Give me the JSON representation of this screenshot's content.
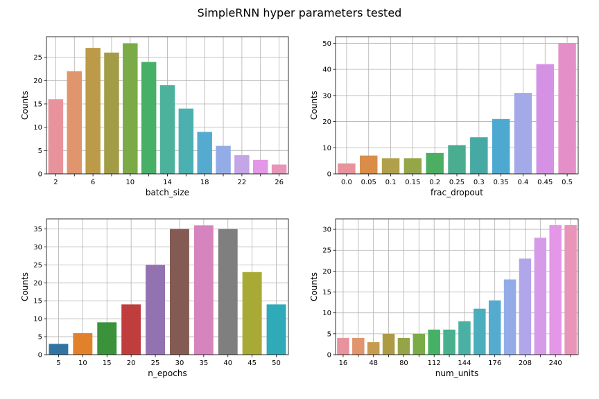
{
  "title": "SimpleRNN hyper parameters tested",
  "chart_data": [
    {
      "type": "bar",
      "xlabel": "batch_size",
      "ylabel": "Counts",
      "ylim": [
        0,
        29.4
      ],
      "yticks": [
        0,
        5,
        10,
        15,
        20,
        25
      ],
      "grid": true,
      "categories": [
        "2",
        "4",
        "6",
        "8",
        "10",
        "12",
        "14",
        "16",
        "18",
        "20",
        "22",
        "24",
        "26"
      ],
      "tick_labels": [
        "2",
        "",
        "6",
        "",
        "10",
        "",
        "14",
        "",
        "18",
        "",
        "22",
        "",
        "26"
      ],
      "values": [
        16,
        22,
        27,
        26,
        28,
        24,
        19,
        14,
        9,
        6,
        4,
        3,
        2
      ],
      "colors": [
        "#e8939b",
        "#e0956c",
        "#bb9a48",
        "#a29c46",
        "#7aab46",
        "#46b166",
        "#4cb29c",
        "#4ab0b0",
        "#55abcf",
        "#93ace8",
        "#c3a5e8",
        "#e496e7",
        "#e994b9"
      ]
    },
    {
      "type": "bar",
      "xlabel": "frac_dropout",
      "ylabel": "Counts",
      "ylim": [
        0,
        52.5
      ],
      "yticks": [
        0,
        10,
        20,
        30,
        40,
        50
      ],
      "grid": true,
      "categories": [
        "0.0",
        "0.05",
        "0.1",
        "0.15",
        "0.2",
        "0.25",
        "0.3",
        "0.35",
        "0.4",
        "0.45",
        "0.5"
      ],
      "tick_labels": [
        "0.0",
        "0.05",
        "0.1",
        "0.15",
        "0.2",
        "0.25",
        "0.3",
        "0.35",
        "0.4",
        "0.45",
        "0.5"
      ],
      "values": [
        4,
        7,
        6,
        6,
        8,
        11,
        14,
        21,
        31,
        42,
        50
      ],
      "colors": [
        "#e8939b",
        "#d98d48",
        "#b0a04a",
        "#94a647",
        "#4bae62",
        "#4aad90",
        "#47a9a3",
        "#4ea9d1",
        "#a4aae8",
        "#d592e4",
        "#e58fc9"
      ]
    },
    {
      "type": "bar",
      "xlabel": "n_epochs",
      "ylabel": "Counts",
      "ylim": [
        0,
        37.8
      ],
      "yticks": [
        0,
        5,
        10,
        15,
        20,
        25,
        30,
        35
      ],
      "grid": true,
      "categories": [
        "5",
        "10",
        "15",
        "20",
        "25",
        "30",
        "35",
        "40",
        "45",
        "50"
      ],
      "tick_labels": [
        "5",
        "10",
        "15",
        "20",
        "25",
        "30",
        "35",
        "40",
        "45",
        "50"
      ],
      "values": [
        3,
        6,
        9,
        14,
        25,
        35,
        36,
        35,
        23,
        14
      ],
      "colors": [
        "#3274a1",
        "#e1812c",
        "#3a923a",
        "#c03d3e",
        "#9372b2",
        "#845b53",
        "#d684bd",
        "#7f7f7f",
        "#a9aa35",
        "#2eaab8"
      ]
    },
    {
      "type": "bar",
      "xlabel": "num_units",
      "ylabel": "Counts",
      "ylim": [
        0,
        32.5
      ],
      "yticks": [
        0,
        5,
        10,
        15,
        20,
        25,
        30
      ],
      "grid": true,
      "categories": [
        "16",
        "32",
        "48",
        "64",
        "80",
        "96",
        "112",
        "128",
        "144",
        "160",
        "176",
        "192",
        "208",
        "224",
        "240",
        "256"
      ],
      "tick_labels": [
        "16",
        "",
        "48",
        "",
        "80",
        "",
        "112",
        "",
        "144",
        "",
        "176",
        "",
        "208",
        "",
        "240",
        ""
      ],
      "values": [
        4,
        4,
        3,
        5,
        4,
        5,
        6,
        6,
        8,
        11,
        13,
        18,
        23,
        28,
        31,
        31
      ],
      "colors": [
        "#e8939b",
        "#e0956c",
        "#c79b4f",
        "#ad9a45",
        "#94a447",
        "#7aab46",
        "#46b166",
        "#48b08c",
        "#4ab0a4",
        "#4aaebd",
        "#55abcf",
        "#93ace8",
        "#b1a6ea",
        "#d69be8",
        "#e496e7",
        "#e994b9"
      ]
    }
  ]
}
